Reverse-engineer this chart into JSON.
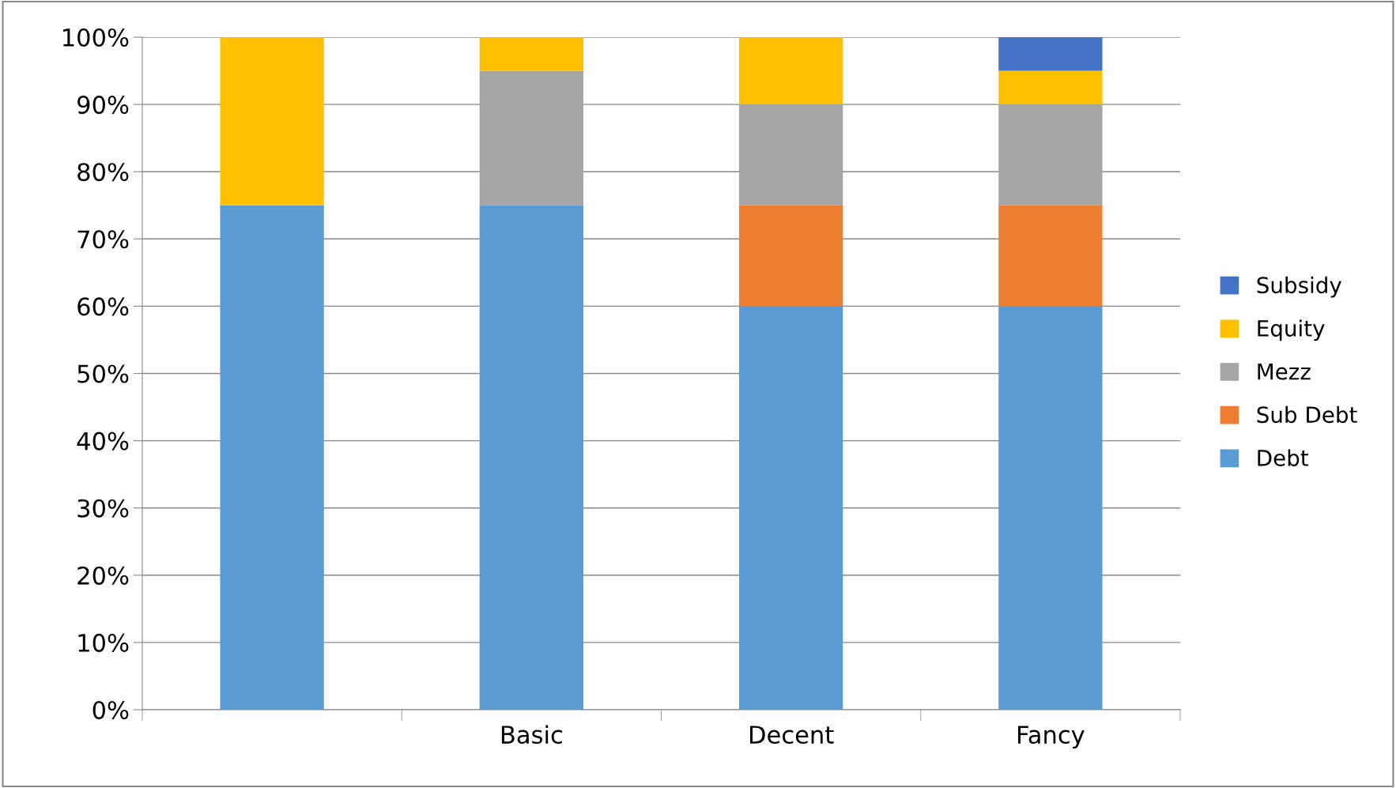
{
  "chart_data": {
    "type": "bar",
    "stacked": true,
    "categories": [
      null,
      "Basic",
      "Decent",
      "Fancy"
    ],
    "series": [
      {
        "name": "Debt",
        "color": "#5b9bd5",
        "values": [
          75,
          75,
          60,
          60
        ]
      },
      {
        "name": "Sub Debt",
        "color": "#ed7d31",
        "values": [
          null,
          null,
          15,
          15
        ]
      },
      {
        "name": "Mezz",
        "color": "#a5a5a5",
        "values": [
          null,
          20,
          15,
          15
        ]
      },
      {
        "name": "Equity",
        "color": "#ffc000",
        "values": [
          25,
          5,
          10,
          5
        ]
      },
      {
        "name": "Subsidy",
        "color": "#4472c4",
        "values": [
          null,
          null,
          null,
          5
        ]
      }
    ],
    "ylim": [
      0,
      100
    ],
    "yticks": [
      {
        "value": 0,
        "label": "0%"
      },
      {
        "value": 10,
        "label": "10%"
      },
      {
        "value": 20,
        "label": "20%"
      },
      {
        "value": 30,
        "label": "30%"
      },
      {
        "value": 40,
        "label": "40%"
      },
      {
        "value": 50,
        "label": "50%"
      },
      {
        "value": 60,
        "label": "60%"
      },
      {
        "value": 70,
        "label": "70%"
      },
      {
        "value": 80,
        "label": "80%"
      },
      {
        "value": 90,
        "label": "90%"
      },
      {
        "value": 100,
        "label": "100%"
      }
    ],
    "grid": "y",
    "legend": "right"
  }
}
